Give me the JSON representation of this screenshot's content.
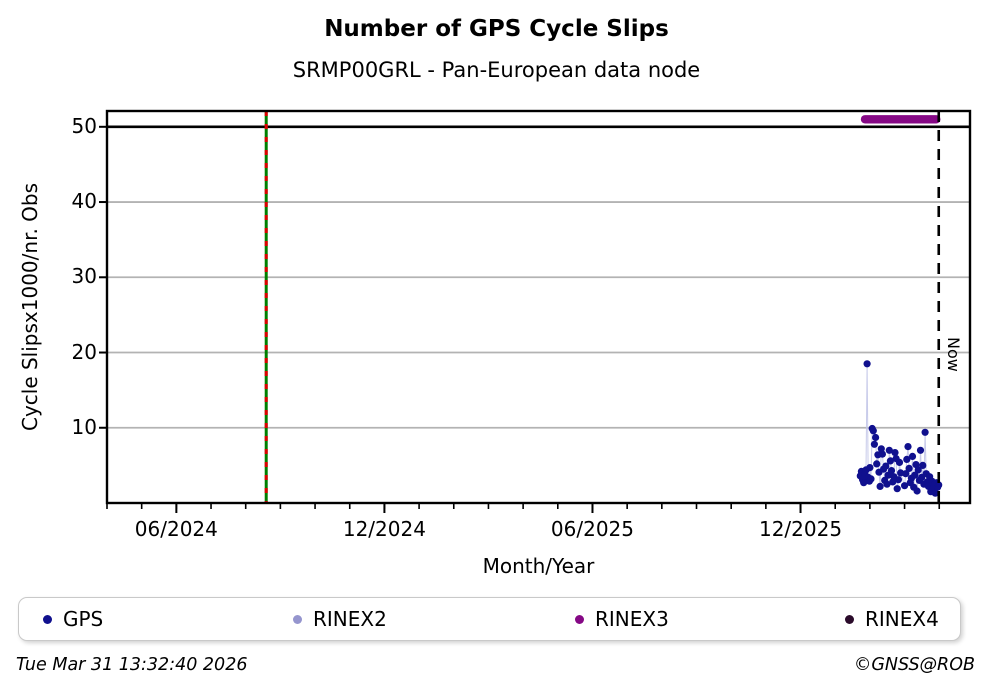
{
  "header": {
    "title": "Number of GPS Cycle Slips",
    "subtitle": "SRMP00GRL - Pan-European data node"
  },
  "footer": {
    "timestamp": "Tue Mar 31 13:32:40 2026",
    "credit": "©GNSS@ROB"
  },
  "legend": {
    "items": [
      {
        "label": "GPS",
        "color": "#10108E"
      },
      {
        "label": "RINEX2",
        "color": "#9595CE"
      },
      {
        "label": "RINEX3",
        "color": "#850885"
      },
      {
        "label": "RINEX4",
        "color": "#2B0B2B"
      }
    ]
  },
  "chart_data": {
    "type": "scatter",
    "title": "Number of GPS Cycle Slips",
    "subtitle": "SRMP00GRL - Pan-European data node",
    "xlabel": "Month/Year",
    "ylabel": "Cycle Slipsx1000/nr. Obs",
    "x_range": [
      "2024-04-01",
      "2026-04-28"
    ],
    "ylim": [
      0,
      52.1
    ],
    "y_ticks": [
      10,
      20,
      30,
      40,
      50
    ],
    "x_major_ticks": [
      {
        "label": "06/2024",
        "date": "2024-06-01"
      },
      {
        "label": "12/2024",
        "date": "2024-12-01"
      },
      {
        "label": "06/2025",
        "date": "2025-06-01"
      },
      {
        "label": "12/2025",
        "date": "2025-12-01"
      }
    ],
    "grid_color": "#b3b3b3",
    "threshold_line": {
      "value": 50,
      "color": "#000000"
    },
    "event_line": {
      "date": "2024-08-19",
      "base_color": "#008000",
      "dash_color": "#DD0000"
    },
    "now_line": {
      "date": "2026-03-31",
      "label": "Now",
      "color": "#000000"
    },
    "connector_color": "#c2c5e8",
    "series": [
      {
        "name": "GPS",
        "color": "#10108E",
        "marker_radius": 3.6,
        "points": [
          {
            "d": "2026-01-23",
            "v": 3.6
          },
          {
            "d": "2026-01-24",
            "v": 4.2
          },
          {
            "d": "2026-01-25",
            "v": 3.1
          },
          {
            "d": "2026-01-26",
            "v": 2.7
          },
          {
            "d": "2026-01-27",
            "v": 3.9
          },
          {
            "d": "2026-01-28",
            "v": 4.4
          },
          {
            "d": "2026-01-29",
            "v": 18.5
          },
          {
            "d": "2026-01-30",
            "v": 3.4
          },
          {
            "d": "2026-01-31",
            "v": 2.9
          },
          {
            "d": "2026-02-01",
            "v": 4.7
          },
          {
            "d": "2026-02-02",
            "v": 3.2
          },
          {
            "d": "2026-02-03",
            "v": 9.9
          },
          {
            "d": "2026-02-04",
            "v": 9.6
          },
          {
            "d": "2026-02-05",
            "v": 7.8
          },
          {
            "d": "2026-02-06",
            "v": 8.7
          },
          {
            "d": "2026-02-07",
            "v": 5.2
          },
          {
            "d": "2026-02-08",
            "v": 6.4
          },
          {
            "d": "2026-02-09",
            "v": 4.1
          },
          {
            "d": "2026-02-10",
            "v": 2.2
          },
          {
            "d": "2026-02-11",
            "v": 7.2
          },
          {
            "d": "2026-02-12",
            "v": 6.5
          },
          {
            "d": "2026-02-13",
            "v": 4.5
          },
          {
            "d": "2026-02-14",
            "v": 3.0
          },
          {
            "d": "2026-02-15",
            "v": 4.9
          },
          {
            "d": "2026-02-16",
            "v": 2.5
          },
          {
            "d": "2026-02-17",
            "v": 3.7
          },
          {
            "d": "2026-02-18",
            "v": 7.0
          },
          {
            "d": "2026-02-19",
            "v": 5.6
          },
          {
            "d": "2026-02-20",
            "v": 4.3
          },
          {
            "d": "2026-02-21",
            "v": 2.8
          },
          {
            "d": "2026-02-22",
            "v": 3.5
          },
          {
            "d": "2026-02-23",
            "v": 6.7
          },
          {
            "d": "2026-02-24",
            "v": 5.9
          },
          {
            "d": "2026-02-25",
            "v": 1.9
          },
          {
            "d": "2026-02-26",
            "v": 3.1
          },
          {
            "d": "2026-02-27",
            "v": 5.4
          },
          {
            "d": "2026-02-28",
            "v": 4.0
          },
          {
            "d": "2026-03-01",
            "v": 2.3
          },
          {
            "d": "2026-03-02",
            "v": 3.9
          },
          {
            "d": "2026-03-03",
            "v": 5.8
          },
          {
            "d": "2026-03-04",
            "v": 7.5
          },
          {
            "d": "2026-03-05",
            "v": 4.6
          },
          {
            "d": "2026-03-06",
            "v": 2.7
          },
          {
            "d": "2026-03-07",
            "v": 3.3
          },
          {
            "d": "2026-03-08",
            "v": 6.2
          },
          {
            "d": "2026-03-09",
            "v": 2.1
          },
          {
            "d": "2026-03-10",
            "v": 3.7
          },
          {
            "d": "2026-03-11",
            "v": 5.1
          },
          {
            "d": "2026-03-12",
            "v": 1.6
          },
          {
            "d": "2026-03-13",
            "v": 4.4
          },
          {
            "d": "2026-03-14",
            "v": 3.0
          },
          {
            "d": "2026-03-15",
            "v": 7.0
          },
          {
            "d": "2026-03-16",
            "v": 3.4
          },
          {
            "d": "2026-03-17",
            "v": 5.0
          },
          {
            "d": "2026-03-18",
            "v": 2.5
          },
          {
            "d": "2026-03-19",
            "v": 9.4
          },
          {
            "d": "2026-03-20",
            "v": 3.9
          },
          {
            "d": "2026-03-21",
            "v": 2.8
          },
          {
            "d": "2026-03-22",
            "v": 2.2
          },
          {
            "d": "2026-03-23",
            "v": 3.5
          },
          {
            "d": "2026-03-24",
            "v": 1.5
          },
          {
            "d": "2026-03-25",
            "v": 2.9
          },
          {
            "d": "2026-03-26",
            "v": 2.0
          },
          {
            "d": "2026-03-27",
            "v": 2.4
          },
          {
            "d": "2026-03-28",
            "v": 1.3
          },
          {
            "d": "2026-03-29",
            "v": 2.7
          },
          {
            "d": "2026-03-30",
            "v": 2.1
          },
          {
            "d": "2026-03-31",
            "v": 2.4
          }
        ]
      },
      {
        "name": "RINEX2",
        "color": "#9595CE",
        "points": []
      },
      {
        "name": "RINEX3",
        "color": "#850885",
        "segment": {
          "start": "2026-01-27",
          "end": "2026-03-29",
          "value": 51
        }
      },
      {
        "name": "RINEX4",
        "color": "#2B0B2B",
        "points": []
      }
    ]
  }
}
